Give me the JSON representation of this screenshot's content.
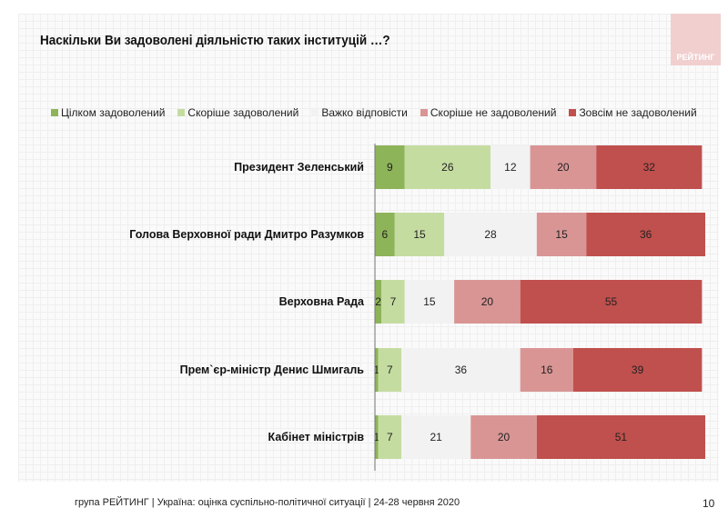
{
  "title": "Наскільки Ви задоволені діяльністю таких інституцій …?",
  "logo_text": "РЕЙТИНГ",
  "footer": "група РЕЙТИНГ |  Україна: оцінка суспільно-політичної  ситуації  | 24-28 червня  2020",
  "page_number": "10",
  "chart_data": {
    "type": "bar",
    "orientation": "horizontal",
    "stacked": true,
    "legend_position": "top",
    "categories": [
      "Президент Зеленський",
      "Голова Верховної ради Дмитро Разумков",
      "Верховна Рада",
      "Прем`єр-міністр Денис Шмигаль",
      "Кабінет міністрів"
    ],
    "series": [
      {
        "name": "Цілком задоволений",
        "color": "#8db458",
        "values": [
          9,
          6,
          2,
          1,
          1
        ]
      },
      {
        "name": "Скоріше задоволений",
        "color": "#c5dca1",
        "values": [
          26,
          15,
          7,
          7,
          7
        ]
      },
      {
        "name": "Важко відповісти",
        "color": "#f2f2f2",
        "values": [
          12,
          28,
          15,
          36,
          21
        ]
      },
      {
        "name": "Скоріше не задоволений",
        "color": "#d99594",
        "values": [
          20,
          15,
          20,
          16,
          20
        ]
      },
      {
        "name": "Зовсім не задоволений",
        "color": "#c0504d",
        "values": [
          32,
          36,
          55,
          39,
          51
        ]
      }
    ],
    "xlim": [
      0,
      100
    ],
    "grid": false
  }
}
